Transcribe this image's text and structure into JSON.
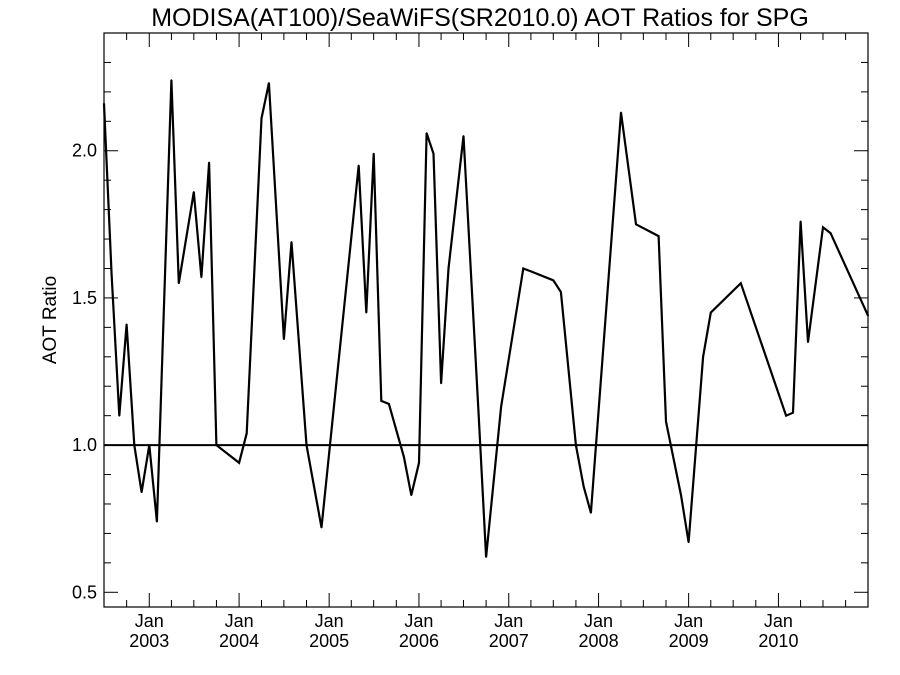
{
  "chart_data": {
    "type": "line",
    "title": "MODISA(AT100)/SeaWiFS(SR2010.0)  AOT Ratios for SPG",
    "xlabel": "",
    "ylabel": "AOT Ratio",
    "xlim": [
      "2002-07-01",
      "2010-12-31"
    ],
    "ylim": [
      0.45,
      2.4
    ],
    "y_ticks": [
      {
        "value": 0.5,
        "label": "0.5"
      },
      {
        "value": 1.0,
        "label": "1.0"
      },
      {
        "value": 1.5,
        "label": "1.5"
      },
      {
        "value": 2.0,
        "label": "2.0"
      }
    ],
    "x_ticks": [
      {
        "date": "2003-01-01",
        "month": "Jan",
        "year": "2003"
      },
      {
        "date": "2004-01-01",
        "month": "Jan",
        "year": "2004"
      },
      {
        "date": "2005-01-01",
        "month": "Jan",
        "year": "2005"
      },
      {
        "date": "2006-01-01",
        "month": "Jan",
        "year": "2006"
      },
      {
        "date": "2007-01-01",
        "month": "Jan",
        "year": "2007"
      },
      {
        "date": "2008-01-01",
        "month": "Jan",
        "year": "2008"
      },
      {
        "date": "2009-01-01",
        "month": "Jan",
        "year": "2009"
      },
      {
        "date": "2010-01-01",
        "month": "Jan",
        "year": "2010"
      }
    ],
    "reference_line": {
      "y": 1.0
    },
    "grid": false,
    "series": [
      {
        "x": [
          "2002-07-01",
          "2002-08-01",
          "2002-09-01",
          "2002-10-01",
          "2002-11-01",
          "2002-12-01",
          "2003-01-01",
          "2003-02-01",
          "2003-04-01",
          "2003-05-01",
          "2003-07-01",
          "2003-08-01",
          "2003-09-01",
          "2003-10-01",
          "2004-01-01",
          "2004-02-01",
          "2004-04-01",
          "2004-05-01",
          "2004-07-01",
          "2004-08-01",
          "2004-10-01",
          "2004-12-01",
          "2005-05-01",
          "2005-06-01",
          "2005-07-01",
          "2005-08-01",
          "2005-09-01",
          "2005-11-01",
          "2005-12-01",
          "2006-01-01",
          "2006-02-01",
          "2006-03-01",
          "2006-04-01",
          "2006-05-01",
          "2006-07-01",
          "2006-09-01",
          "2006-10-01",
          "2006-12-01",
          "2007-03-01",
          "2007-04-01",
          "2007-07-01",
          "2007-08-01",
          "2007-10-01",
          "2007-11-01",
          "2007-12-01",
          "2008-04-01",
          "2008-06-01",
          "2008-09-01",
          "2008-10-01",
          "2008-12-01",
          "2009-01-01",
          "2009-03-01",
          "2009-04-01",
          "2009-08-01",
          "2010-02-01",
          "2010-03-01",
          "2010-04-01",
          "2010-05-01",
          "2010-07-01",
          "2010-08-01",
          "2010-12-31"
        ],
        "y": [
          2.16,
          1.58,
          1.1,
          1.41,
          1.0,
          0.84,
          1.0,
          0.74,
          2.24,
          1.55,
          1.86,
          1.57,
          1.96,
          1.0,
          0.94,
          1.04,
          2.11,
          2.23,
          1.36,
          1.69,
          1.0,
          0.72,
          1.95,
          1.45,
          1.99,
          1.15,
          1.14,
          0.96,
          0.83,
          0.94,
          2.06,
          1.99,
          1.21,
          1.6,
          2.05,
          1.1,
          0.62,
          1.13,
          1.6,
          1.59,
          1.56,
          1.52,
          1.0,
          0.86,
          0.77,
          2.13,
          1.75,
          1.71,
          1.08,
          0.83,
          0.67,
          1.3,
          1.45,
          1.55,
          1.1,
          1.11,
          1.76,
          1.35,
          1.74,
          1.72,
          1.44
        ]
      }
    ]
  }
}
